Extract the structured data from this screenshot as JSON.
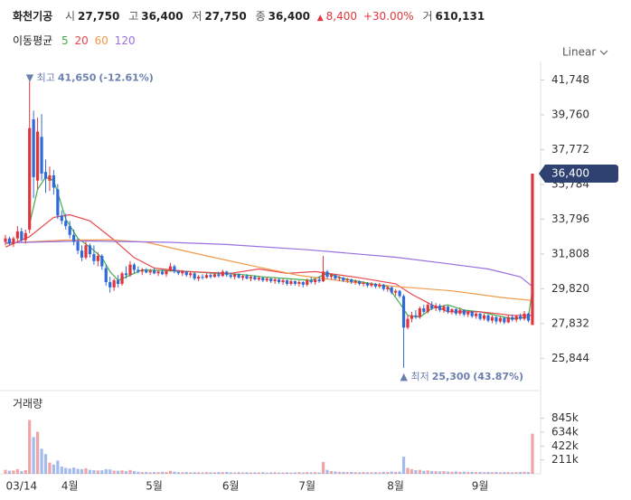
{
  "header": {
    "name": "화천기공",
    "quote": [
      {
        "key": "시",
        "value": 27750,
        "label": "27,750"
      },
      {
        "key": "고",
        "value": 36400,
        "label": "36,400"
      },
      {
        "key": "저",
        "value": 27750,
        "label": "27,750"
      },
      {
        "key": "종",
        "value": 36400,
        "label": "36,400"
      }
    ],
    "change": {
      "value": 8400,
      "label": "8,400"
    },
    "change_rate": {
      "value": 30,
      "label": "+30.00%"
    },
    "volume": {
      "key": "거",
      "value": 610131,
      "label": "610,131"
    }
  },
  "chart_data": {
    "type": "candlestick",
    "scale_label": "Linear",
    "up_color": "#e0353b",
    "down_color": "#2f6bd8",
    "categories": [
      null,
      null,
      null,
      null,
      "03/14",
      null,
      null,
      null,
      null,
      null,
      null,
      null,
      null,
      null,
      null,
      null,
      "4월",
      null,
      null,
      null,
      null,
      null,
      null,
      null,
      null,
      null,
      null,
      null,
      null,
      null,
      null,
      null,
      null,
      null,
      null,
      null,
      null,
      "5월",
      null,
      null,
      null,
      null,
      null,
      null,
      null,
      null,
      null,
      null,
      null,
      null,
      null,
      null,
      null,
      null,
      null,
      null,
      "6월",
      null,
      null,
      null,
      null,
      null,
      null,
      null,
      null,
      null,
      null,
      null,
      null,
      null,
      null,
      null,
      null,
      null,
      null,
      "7월",
      null,
      null,
      null,
      null,
      null,
      null,
      null,
      null,
      null,
      null,
      null,
      null,
      null,
      null,
      null,
      null,
      null,
      null,
      null,
      null,
      null,
      "8월",
      null,
      null,
      null,
      null,
      null,
      null,
      null,
      null,
      null,
      null,
      null,
      null,
      null,
      null,
      null,
      null,
      null,
      null,
      null,
      null,
      "9월",
      null,
      null,
      null,
      null,
      null,
      null,
      null,
      null,
      null,
      null,
      null,
      null,
      null
    ],
    "candles": [
      [
        32500,
        32900,
        32300,
        32700
      ],
      [
        32700,
        32800,
        32300,
        32400
      ],
      [
        32400,
        32800,
        32200,
        32700
      ],
      [
        32700,
        33400,
        32500,
        33100
      ],
      [
        33100,
        33300,
        32500,
        32600
      ],
      [
        32600,
        33200,
        32400,
        33000
      ],
      [
        33200,
        41650,
        33000,
        39000
      ],
      [
        39500,
        40000,
        35000,
        36200
      ],
      [
        36000,
        39600,
        35500,
        38800
      ],
      [
        38500,
        39800,
        36000,
        36400
      ],
      [
        36500,
        37200,
        35300,
        36100
      ],
      [
        36000,
        36800,
        35400,
        36300
      ],
      [
        36300,
        36600,
        35200,
        35600
      ],
      [
        35500,
        35800,
        33800,
        34000
      ],
      [
        34000,
        34300,
        33500,
        33700
      ],
      [
        33700,
        34100,
        33200,
        33400
      ],
      [
        33400,
        33700,
        32700,
        32900
      ],
      [
        32900,
        33200,
        32300,
        32500
      ],
      [
        32500,
        32700,
        31800,
        32000
      ],
      [
        32000,
        32300,
        31400,
        31600
      ],
      [
        31600,
        32500,
        31500,
        32300
      ],
      [
        32300,
        32400,
        31600,
        31800
      ],
      [
        31800,
        32300,
        31200,
        31400
      ],
      [
        31400,
        31900,
        31100,
        31700
      ],
      [
        31700,
        31800,
        30900,
        31100
      ],
      [
        31000,
        31200,
        30000,
        30200
      ],
      [
        30200,
        30500,
        29600,
        29900
      ],
      [
        29900,
        30400,
        29700,
        30300
      ],
      [
        30300,
        30600,
        29900,
        30100
      ],
      [
        30100,
        30800,
        30000,
        30700
      ],
      [
        30700,
        31100,
        30400,
        30600
      ],
      [
        30600,
        31400,
        30500,
        31200
      ],
      [
        31200,
        31300,
        30700,
        30900
      ],
      [
        30900,
        31100,
        30700,
        30800
      ],
      [
        30800,
        31000,
        30600,
        30900
      ],
      [
        30900,
        31000,
        30700,
        30750
      ],
      [
        30750,
        30950,
        30600,
        30850
      ],
      [
        30850,
        31000,
        30650,
        30700
      ],
      [
        30700,
        30900,
        30550,
        30800
      ],
      [
        30800,
        30950,
        30600,
        30650
      ],
      [
        30650,
        30900,
        30500,
        30850
      ],
      [
        30850,
        31300,
        30800,
        31100
      ],
      [
        31100,
        31200,
        30700,
        30800
      ],
      [
        30800,
        30900,
        30600,
        30700
      ],
      [
        30700,
        30900,
        30550,
        30800
      ],
      [
        30800,
        30850,
        30500,
        30600
      ],
      [
        30600,
        30800,
        30450,
        30700
      ],
      [
        30700,
        30750,
        30300,
        30400
      ],
      [
        30400,
        30600,
        30250,
        30500
      ],
      [
        30500,
        30650,
        30350,
        30450
      ],
      [
        30450,
        30700,
        30400,
        30600
      ],
      [
        30600,
        30700,
        30400,
        30500
      ],
      [
        30500,
        30750,
        30450,
        30650
      ],
      [
        30650,
        30800,
        30450,
        30550
      ],
      [
        30550,
        30900,
        30500,
        30800
      ],
      [
        30800,
        30850,
        30500,
        30600
      ],
      [
        30600,
        30750,
        30400,
        30500
      ],
      [
        30500,
        30700,
        30350,
        30650
      ],
      [
        30650,
        30700,
        30400,
        30450
      ],
      [
        30450,
        30600,
        30300,
        30550
      ],
      [
        30550,
        30650,
        30350,
        30400
      ],
      [
        30400,
        30600,
        30250,
        30500
      ],
      [
        30500,
        30600,
        30300,
        30350
      ],
      [
        30350,
        30550,
        30250,
        30450
      ],
      [
        30450,
        30500,
        30200,
        30300
      ],
      [
        30300,
        30500,
        30200,
        30400
      ],
      [
        30400,
        30450,
        30150,
        30250
      ],
      [
        30250,
        30450,
        30100,
        30350
      ],
      [
        30350,
        30400,
        30100,
        30200
      ],
      [
        30200,
        30400,
        30050,
        30300
      ],
      [
        30300,
        30350,
        30000,
        30100
      ],
      [
        30100,
        30350,
        30000,
        30250
      ],
      [
        30250,
        30300,
        30000,
        30100
      ],
      [
        30100,
        30300,
        29950,
        30200
      ],
      [
        30200,
        30250,
        29900,
        30050
      ],
      [
        30050,
        30400,
        29950,
        30300
      ],
      [
        30300,
        30500,
        30100,
        30200
      ],
      [
        30200,
        30400,
        30050,
        30350
      ],
      [
        30350,
        30500,
        30150,
        30250
      ],
      [
        30250,
        31700,
        30200,
        30800
      ],
      [
        30800,
        30900,
        30400,
        30500
      ],
      [
        30500,
        30700,
        30350,
        30600
      ],
      [
        30600,
        30650,
        30300,
        30400
      ],
      [
        30400,
        30550,
        30250,
        30450
      ],
      [
        30450,
        30500,
        30200,
        30300
      ],
      [
        30300,
        30450,
        30150,
        30350
      ],
      [
        30350,
        30400,
        30100,
        30200
      ],
      [
        30200,
        30350,
        30050,
        30250
      ],
      [
        30250,
        30300,
        30000,
        30100
      ],
      [
        30100,
        30250,
        29950,
        30150
      ],
      [
        30150,
        30200,
        29900,
        30000
      ],
      [
        30000,
        30200,
        29900,
        30100
      ],
      [
        30100,
        30150,
        29850,
        29950
      ],
      [
        29950,
        30150,
        29850,
        30050
      ],
      [
        30050,
        30100,
        29700,
        29800
      ],
      [
        29800,
        30000,
        29650,
        29900
      ],
      [
        29900,
        29950,
        29500,
        29600
      ],
      [
        29600,
        29800,
        29400,
        29700
      ],
      [
        29700,
        29750,
        29300,
        29400
      ],
      [
        29400,
        29500,
        25300,
        27600
      ],
      [
        27600,
        28300,
        27500,
        28100
      ],
      [
        28100,
        28500,
        27900,
        28300
      ],
      [
        28300,
        28600,
        28100,
        28200
      ],
      [
        28200,
        28800,
        28100,
        28700
      ],
      [
        28700,
        28900,
        28400,
        28500
      ],
      [
        28500,
        29000,
        28400,
        28900
      ],
      [
        28900,
        29100,
        28600,
        28700
      ],
      [
        28700,
        29000,
        28550,
        28850
      ],
      [
        28850,
        28950,
        28500,
        28600
      ],
      [
        28600,
        28900,
        28450,
        28800
      ],
      [
        28800,
        28850,
        28400,
        28500
      ],
      [
        28500,
        28700,
        28350,
        28650
      ],
      [
        28650,
        28700,
        28300,
        28400
      ],
      [
        28400,
        28750,
        28300,
        28600
      ],
      [
        28600,
        28650,
        28250,
        28350
      ],
      [
        28350,
        28600,
        28200,
        28500
      ],
      [
        28500,
        28550,
        28150,
        28250
      ],
      [
        28250,
        28450,
        28100,
        28400
      ],
      [
        28400,
        28450,
        28000,
        28100
      ],
      [
        28100,
        28400,
        28000,
        28300
      ],
      [
        28300,
        28350,
        27900,
        28000
      ],
      [
        28000,
        28300,
        27850,
        28200
      ],
      [
        28200,
        28250,
        27800,
        27950
      ],
      [
        27950,
        28250,
        27850,
        28150
      ],
      [
        28150,
        28200,
        27800,
        27900
      ],
      [
        27900,
        28300,
        27850,
        28200
      ],
      [
        28200,
        28350,
        27950,
        28050
      ],
      [
        28050,
        28300,
        27900,
        28250
      ],
      [
        28250,
        28400,
        28000,
        28100
      ],
      [
        28100,
        28550,
        28000,
        28400
      ],
      [
        28400,
        28450,
        27900,
        28000
      ],
      [
        27750,
        36400,
        27750,
        36400
      ]
    ],
    "ylim": [
      24000,
      42600
    ],
    "yticks": [
      {
        "value": 41748,
        "label": "41,748"
      },
      {
        "value": 39760,
        "label": "39,760"
      },
      {
        "value": 37772,
        "label": "37,772"
      },
      {
        "value": 35784,
        "label": "35,784"
      },
      {
        "value": 33796,
        "label": "33,796"
      },
      {
        "value": 31808,
        "label": "31,808"
      },
      {
        "value": 29820,
        "label": "29,820"
      },
      {
        "value": 27832,
        "label": "27,832"
      },
      {
        "value": 25844,
        "label": "25,844"
      }
    ],
    "price_tag": {
      "value": 36400,
      "label": "36,400"
    },
    "high_annotation": {
      "text": "최고",
      "value": 41650,
      "label": "41,650",
      "change": "(-12.61%)"
    },
    "low_annotation": {
      "text": "최저",
      "value": 25300,
      "label": "25,300",
      "change": "(43.87%)"
    },
    "moving_averages": {
      "label": "이동평균",
      "series": [
        {
          "name": "5",
          "color": "#3fae49",
          "x": [
            6,
            8,
            10,
            12,
            13,
            15,
            18,
            21,
            24,
            26,
            28,
            31,
            34,
            40,
            46,
            52,
            58,
            64,
            70,
            76,
            80,
            84,
            90,
            95,
            98,
            100,
            103,
            106,
            110,
            114,
            118,
            122,
            126,
            130,
            131
          ],
          "values": [
            33500,
            35500,
            36200,
            36000,
            35300,
            33800,
            32700,
            32200,
            31600,
            30800,
            30300,
            30600,
            30900,
            30850,
            30800,
            30700,
            30650,
            30500,
            30400,
            30300,
            30700,
            30400,
            30150,
            29950,
            29000,
            28300,
            28200,
            28700,
            28900,
            28600,
            28500,
            28300,
            28100,
            28200,
            29800
          ]
        },
        {
          "name": "20",
          "color": "#e8474d",
          "x": [
            0,
            6,
            12,
            16,
            21,
            27,
            32,
            37,
            45,
            56,
            63,
            70,
            77,
            88,
            97,
            101,
            106,
            110,
            118,
            126,
            131
          ],
          "values": [
            32200,
            32800,
            33900,
            34050,
            33700,
            32600,
            31600,
            31000,
            30800,
            30700,
            30950,
            30700,
            30800,
            30450,
            30100,
            29500,
            28900,
            28500,
            28500,
            28300,
            28300
          ]
        },
        {
          "name": "60",
          "color": "#f29a4a",
          "x": [
            0,
            6,
            15,
            26,
            35,
            50,
            62,
            73,
            86,
            97,
            111,
            124,
            131
          ],
          "values": [
            32400,
            32500,
            32600,
            32620,
            32480,
            31700,
            31100,
            30580,
            30200,
            29950,
            29700,
            29300,
            29150
          ]
        },
        {
          "name": "120",
          "color": "#9a6fe0",
          "x": [
            0,
            20,
            40,
            55,
            75,
            97,
            110,
            120,
            128,
            131
          ],
          "values": [
            32450,
            32550,
            32480,
            32350,
            32050,
            31620,
            31250,
            30950,
            30500,
            29950
          ]
        }
      ]
    },
    "volume": {
      "label": "거래량",
      "values": [
        60000,
        45000,
        50000,
        70000,
        40000,
        55000,
        820000,
        560000,
        640000,
        380000,
        300000,
        170000,
        140000,
        200000,
        110000,
        90000,
        80000,
        95000,
        75000,
        70000,
        85000,
        60000,
        55000,
        50000,
        52000,
        70000,
        65000,
        48000,
        45000,
        52000,
        40000,
        58000,
        42000,
        30000,
        25000,
        28000,
        22000,
        26000,
        24000,
        30000,
        27000,
        45000,
        32000,
        25000,
        23000,
        26000,
        21000,
        24000,
        22000,
        20000,
        25000,
        23000,
        21000,
        26000,
        24000,
        28000,
        22000,
        20000,
        23000,
        21000,
        24000,
        19000,
        22000,
        20000,
        25000,
        18000,
        21000,
        23000,
        19000,
        20000,
        22000,
        18000,
        21000,
        24000,
        20000,
        26000,
        22000,
        25000,
        20000,
        180000,
        60000,
        40000,
        35000,
        30000,
        28000,
        25000,
        27000,
        24000,
        22000,
        26000,
        23000,
        21000,
        25000,
        22000,
        30000,
        26000,
        35000,
        28000,
        32000,
        260000,
        90000,
        70000,
        55000,
        60000,
        45000,
        50000,
        42000,
        38000,
        35000,
        40000,
        33000,
        30000,
        36000,
        28000,
        32000,
        27000,
        30000,
        26000,
        29000,
        25000,
        28000,
        24000,
        27000,
        23000,
        26000,
        25000,
        22000,
        24000,
        28000,
        30000,
        26000,
        610131
      ],
      "ylim": [
        0,
        950000
      ],
      "yticks": [
        {
          "value": 845000,
          "label": "845k"
        },
        {
          "value": 634000,
          "label": "634k"
        },
        {
          "value": 422000,
          "label": "422k"
        },
        {
          "value": 211000,
          "label": "211k"
        }
      ]
    }
  }
}
